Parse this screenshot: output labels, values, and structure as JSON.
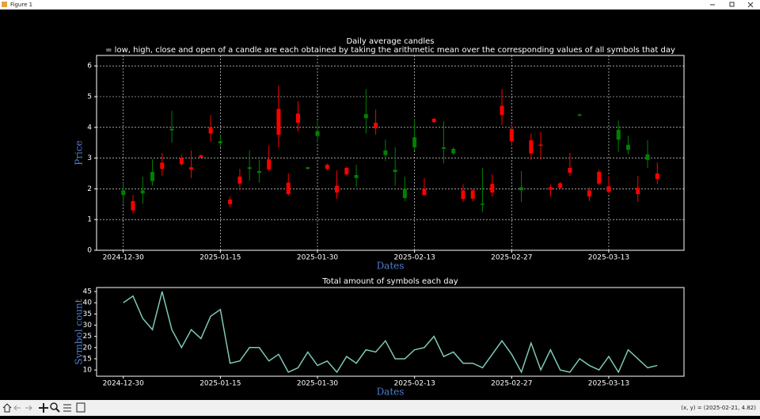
{
  "window": {
    "title": "Figure 1",
    "status": "(x, y) = (2025-02-21, 4.82)"
  },
  "chart_data": [
    {
      "type": "candlestick",
      "title": "Daily average candles",
      "subtitle": "= low, high, close and open of a candle are each obtained by taking the arithmetic mean over the corresponding values of all symbols that day",
      "x_label": "Dates",
      "y_label": "Price",
      "categories": [
        "2024-12-30",
        null,
        null,
        null,
        null,
        null,
        null,
        null,
        null,
        null,
        "2025-01-15",
        null,
        null,
        null,
        null,
        null,
        null,
        null,
        null,
        null,
        "2025-01-30",
        null,
        null,
        null,
        null,
        null,
        null,
        null,
        null,
        null,
        "2025-02-13",
        null,
        null,
        null,
        null,
        null,
        null,
        null,
        null,
        null,
        "2025-02-27",
        null,
        null,
        null,
        null,
        null,
        null,
        null,
        null,
        null,
        "2025-03-13",
        null,
        null,
        null,
        null,
        null
      ],
      "open": [
        1.8,
        1.6,
        1.85,
        2.25,
        2.85,
        3.9,
        3.0,
        2.7,
        3.09,
        4.0,
        3.48,
        1.65,
        2.4,
        2.65,
        2.52,
        2.96,
        4.6,
        2.2,
        4.45,
        2.65,
        3.72,
        2.78,
        2.1,
        2.68,
        2.35,
        4.3,
        4.15,
        3.1,
        2.55,
        1.7,
        3.35,
        2.0,
        4.28,
        3.3,
        3.15,
        1.95,
        1.95,
        1.48,
        2.16,
        4.7,
        3.95,
        1.95,
        3.58,
        3.44,
        2.05,
        2.18,
        2.68,
        4.38,
        1.95,
        2.55,
        2.08,
        3.6,
        3.27,
        2.03,
        2.94,
        2.5
      ],
      "high": [
        2.2,
        1.8,
        2.4,
        2.96,
        3.17,
        4.54,
        3.1,
        3.25,
        3.12,
        4.4,
        3.75,
        1.75,
        2.65,
        3.25,
        2.95,
        3.4,
        5.36,
        2.5,
        4.85,
        2.72,
        4.22,
        2.82,
        2.6,
        2.72,
        2.78,
        5.25,
        4.58,
        3.6,
        3.35,
        2.4,
        4.28,
        2.35,
        4.3,
        4.2,
        3.35,
        2.15,
        2.0,
        2.68,
        2.47,
        5.25,
        4.1,
        2.58,
        3.8,
        3.85,
        2.15,
        2.22,
        3.17,
        4.45,
        2.05,
        2.62,
        2.42,
        4.22,
        3.73,
        2.42,
        3.58,
        2.86
      ],
      "low": [
        1.5,
        1.2,
        1.5,
        2.1,
        2.42,
        3.5,
        2.75,
        2.35,
        3.0,
        3.55,
        3.35,
        1.4,
        1.95,
        2.27,
        2.2,
        2.58,
        3.35,
        1.78,
        3.87,
        2.63,
        3.5,
        2.6,
        1.67,
        2.44,
        2.06,
        3.8,
        3.76,
        2.9,
        2.1,
        1.6,
        3.25,
        1.78,
        4.15,
        2.83,
        3.1,
        1.57,
        1.6,
        1.24,
        1.75,
        4.07,
        3.4,
        1.57,
        2.93,
        2.95,
        1.75,
        2.0,
        2.42,
        4.35,
        1.6,
        2.12,
        1.85,
        3.2,
        3.12,
        1.57,
        2.68,
        2.16
      ],
      "close": [
        1.95,
        1.3,
        1.95,
        2.55,
        2.65,
        3.95,
        2.8,
        2.62,
        3.02,
        3.8,
        3.55,
        1.5,
        2.17,
        2.7,
        2.58,
        2.63,
        3.76,
        1.83,
        4.15,
        2.7,
        3.88,
        2.65,
        1.88,
        2.47,
        2.45,
        4.43,
        3.97,
        3.25,
        2.62,
        2.0,
        3.68,
        1.8,
        4.17,
        3.35,
        3.3,
        1.67,
        1.68,
        1.52,
        1.88,
        4.4,
        3.55,
        2.05,
        3.15,
        3.4,
        1.97,
        2.03,
        2.52,
        4.42,
        1.75,
        2.17,
        1.9,
        3.92,
        3.43,
        1.83,
        3.12,
        2.32
      ],
      "up_color": "#008000",
      "down_color": "#ff0000",
      "xlim": [
        -2.75,
        57.75
      ],
      "ylim": [
        0,
        6.34
      ],
      "yticks": [
        0,
        1,
        2,
        3,
        4,
        5,
        6
      ],
      "grid": true
    },
    {
      "type": "line",
      "title": "Total amount of symbols each day",
      "x_label": "Dates",
      "y_label": "Symbol count",
      "categories": [
        "2024-12-30",
        null,
        null,
        null,
        null,
        null,
        null,
        null,
        null,
        null,
        "2025-01-15",
        null,
        null,
        null,
        null,
        null,
        null,
        null,
        null,
        null,
        "2025-01-30",
        null,
        null,
        null,
        null,
        null,
        null,
        null,
        null,
        null,
        "2025-02-13",
        null,
        null,
        null,
        null,
        null,
        null,
        null,
        null,
        null,
        "2025-02-27",
        null,
        null,
        null,
        null,
        null,
        null,
        null,
        null,
        null,
        "2025-03-13",
        null,
        null,
        null,
        null,
        null
      ],
      "values": [
        40,
        43,
        33,
        28,
        45,
        28,
        20,
        28,
        24,
        34,
        37,
        13,
        14,
        20,
        20,
        14,
        17,
        9,
        11,
        18,
        12,
        14,
        9,
        16,
        13,
        19,
        18,
        23,
        15,
        15,
        19,
        20,
        25,
        16,
        18,
        13,
        13,
        11,
        17,
        23,
        17,
        9,
        22,
        10,
        19,
        10,
        9,
        15,
        12,
        10,
        16,
        9,
        19,
        15,
        11,
        12
      ],
      "color": "#7ec8b8",
      "xlim": [
        -2.75,
        57.75
      ],
      "ylim": [
        7.2,
        46.8
      ],
      "yticks": [
        10,
        15,
        20,
        25,
        30,
        35,
        40,
        45
      ],
      "grid": false
    }
  ]
}
